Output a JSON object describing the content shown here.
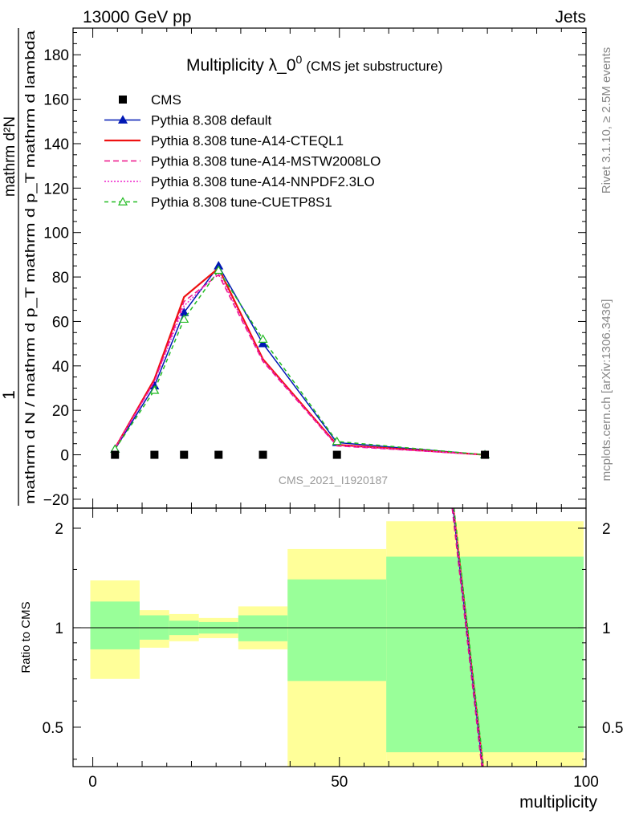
{
  "header": {
    "left": "13000 GeV pp",
    "right": "Jets"
  },
  "side_labels": {
    "rivet": "Rivet 3.1.10, ≥ 2.5M events",
    "mcplots": "mcplots.cern.ch [arXiv:1306.3436]"
  },
  "watermark": "CMS_2021_I1920187",
  "chart_data": {
    "type": "line",
    "title": "Multiplicity λ_0",
    "title_sup": "0",
    "title_note": "(CMS jet substructure)",
    "xlabel": "multiplicity",
    "ylabel_main_num": "1",
    "ylabel_main_den": "mathrm d N / mathrm d p_T mathrm d p_T mathrm d lambda",
    "ylabel_main_num2": "mathrm d²N",
    "ylabel_ratio": "Ratio to CMS",
    "xlim": [
      -4,
      100
    ],
    "ylim": [
      -24,
      192
    ],
    "ratio_ylim_log": [
      0.38,
      2.3
    ],
    "x_ticks": [
      0,
      50,
      100
    ],
    "x_tick_labels": [
      "0",
      "50",
      "100"
    ],
    "y_ticks": [
      -20,
      0,
      20,
      40,
      60,
      80,
      100,
      120,
      140,
      160,
      180
    ],
    "y_tick_labels": [
      "−20",
      "0",
      "20",
      "40",
      "60",
      "80",
      "100",
      "120",
      "140",
      "160",
      "180"
    ],
    "ratio_ticks": [
      0.5,
      1,
      2
    ],
    "ratio_tick_labels": [
      "0.5",
      "1",
      "2"
    ],
    "legend_position": "top-left",
    "cms": {
      "name": "CMS",
      "x": [
        4.5,
        12.5,
        18.5,
        25.5,
        34.5,
        49.5,
        79.5
      ],
      "y": [
        0,
        0,
        0,
        0,
        0,
        0,
        0
      ]
    },
    "series": [
      {
        "name": "Pythia 8.308 default",
        "color": "#0018b4",
        "dash": "",
        "marker": "triangle-filled",
        "x": [
          4.5,
          12.5,
          18.5,
          25.5,
          34.5,
          49.5,
          79.5
        ],
        "y": [
          2.5,
          31,
          64,
          85,
          50,
          5.5,
          0
        ]
      },
      {
        "name": "Pythia 8.308 tune-A14-CTEQL1",
        "color": "#ee1111",
        "dash": "",
        "marker": "none",
        "x": [
          4.5,
          12.5,
          18.5,
          25.5,
          34.5,
          49.5,
          79.5
        ],
        "y": [
          3,
          34,
          71,
          84,
          43,
          4.5,
          0
        ]
      },
      {
        "name": "Pythia 8.308 tune-A14-MSTW2008LO",
        "color": "#ee1188",
        "dash": "7,4",
        "marker": "none",
        "x": [
          4.5,
          12.5,
          18.5,
          25.5,
          34.5,
          49.5,
          79.5
        ],
        "y": [
          3,
          33,
          69,
          81,
          42,
          4,
          0
        ]
      },
      {
        "name": "Pythia 8.308 tune-A14-NNPDF2.3LO",
        "color": "#ee22cc",
        "dash": "2,2",
        "marker": "none",
        "x": [
          4.5,
          12.5,
          18.5,
          25.5,
          34.5,
          49.5,
          79.5
        ],
        "y": [
          3,
          33,
          67,
          82,
          42.5,
          4.2,
          0
        ]
      },
      {
        "name": "Pythia 8.308 tune-CUETP8S1",
        "color": "#22bb22",
        "dash": "5,4",
        "marker": "triangle-open",
        "x": [
          4.5,
          12.5,
          18.5,
          25.5,
          34.5,
          49.5,
          79.5
        ],
        "y": [
          2.5,
          29,
          61,
          83,
          52,
          6,
          0
        ]
      }
    ],
    "ratio_bands": [
      {
        "x0": -0.5,
        "x1": 9.5,
        "yellow": [
          0.7,
          1.39
        ],
        "green": [
          0.86,
          1.2
        ]
      },
      {
        "x0": 9.5,
        "x1": 15.5,
        "yellow": [
          0.87,
          1.13
        ],
        "green": [
          0.92,
          1.09
        ]
      },
      {
        "x0": 15.5,
        "x1": 21.5,
        "yellow": [
          0.91,
          1.1
        ],
        "green": [
          0.95,
          1.05
        ]
      },
      {
        "x0": 21.5,
        "x1": 29.5,
        "yellow": [
          0.93,
          1.07
        ],
        "green": [
          0.96,
          1.04
        ]
      },
      {
        "x0": 29.5,
        "x1": 39.5,
        "yellow": [
          0.86,
          1.16
        ],
        "green": [
          0.91,
          1.09
        ]
      },
      {
        "x0": 39.5,
        "x1": 59.5,
        "yellow": [
          0.38,
          1.73
        ],
        "green": [
          0.69,
          1.4
        ]
      },
      {
        "x0": 59.5,
        "x1": 99.5,
        "yellow": [
          0.38,
          2.1
        ],
        "green": [
          0.42,
          1.64
        ]
      }
    ],
    "ratio_lines": {
      "x": [
        73,
        79
      ],
      "y": [
        2.3,
        0.38
      ]
    }
  }
}
